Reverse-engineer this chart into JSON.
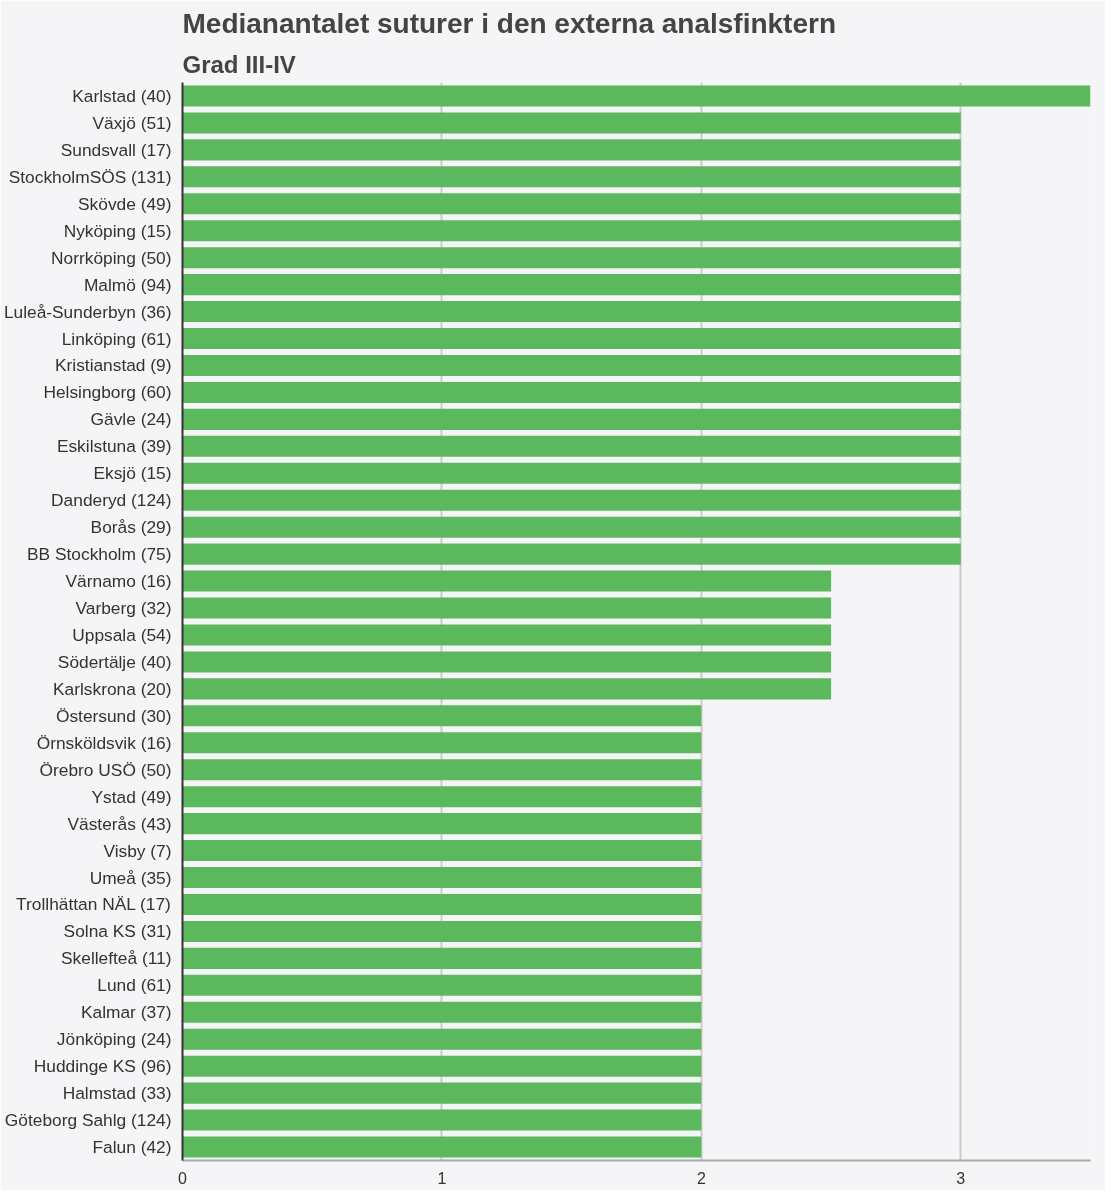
{
  "chart_data": {
    "type": "bar",
    "orientation": "horizontal",
    "title": "Medianantalet suturer i den externa analsfinktern",
    "subtitle": "Grad III-IV",
    "categories": [
      "Karlstad (40)",
      "Växjö (51)",
      "Sundsvall (17)",
      "StockholmSÖS (131)",
      "Skövde (49)",
      "Nyköping (15)",
      "Norrköping (50)",
      "Malmö (94)",
      "Luleå-Sunderbyn (36)",
      "Linköping (61)",
      "Kristianstad (9)",
      "Helsingborg (60)",
      "Gävle (24)",
      "Eskilstuna (39)",
      "Eksjö (15)",
      "Danderyd (124)",
      "Borås (29)",
      "BB Stockholm (75)",
      "Värnamo (16)",
      "Varberg (32)",
      "Uppsala (54)",
      "Södertälje (40)",
      "Karlskrona (20)",
      "Östersund (30)",
      "Örnsköldsvik (16)",
      "Örebro USÖ (50)",
      "Ystad (49)",
      "Västerås (43)",
      "Visby (7)",
      "Umeå (35)",
      "Trollhättan NÄL (17)",
      "Solna KS (31)",
      "Skellefteå (11)",
      "Lund (61)",
      "Kalmar (37)",
      "Jönköping (24)",
      "Huddinge KS (96)",
      "Halmstad (33)",
      "Göteborg Sahlg (124)",
      "Falun (42)"
    ],
    "values": [
      3.5,
      3,
      3,
      3,
      3,
      3,
      3,
      3,
      3,
      3,
      3,
      3,
      3,
      3,
      3,
      3,
      3,
      3,
      2.5,
      2.5,
      2.5,
      2.5,
      2.5,
      2,
      2,
      2,
      2,
      2,
      2,
      2,
      2,
      2,
      2,
      2,
      2,
      2,
      2,
      2,
      2,
      2
    ],
    "color": "#5cb85c",
    "xlim": [
      0,
      3.5
    ],
    "xticks": [
      0,
      1,
      2,
      3
    ],
    "grid": "x"
  }
}
